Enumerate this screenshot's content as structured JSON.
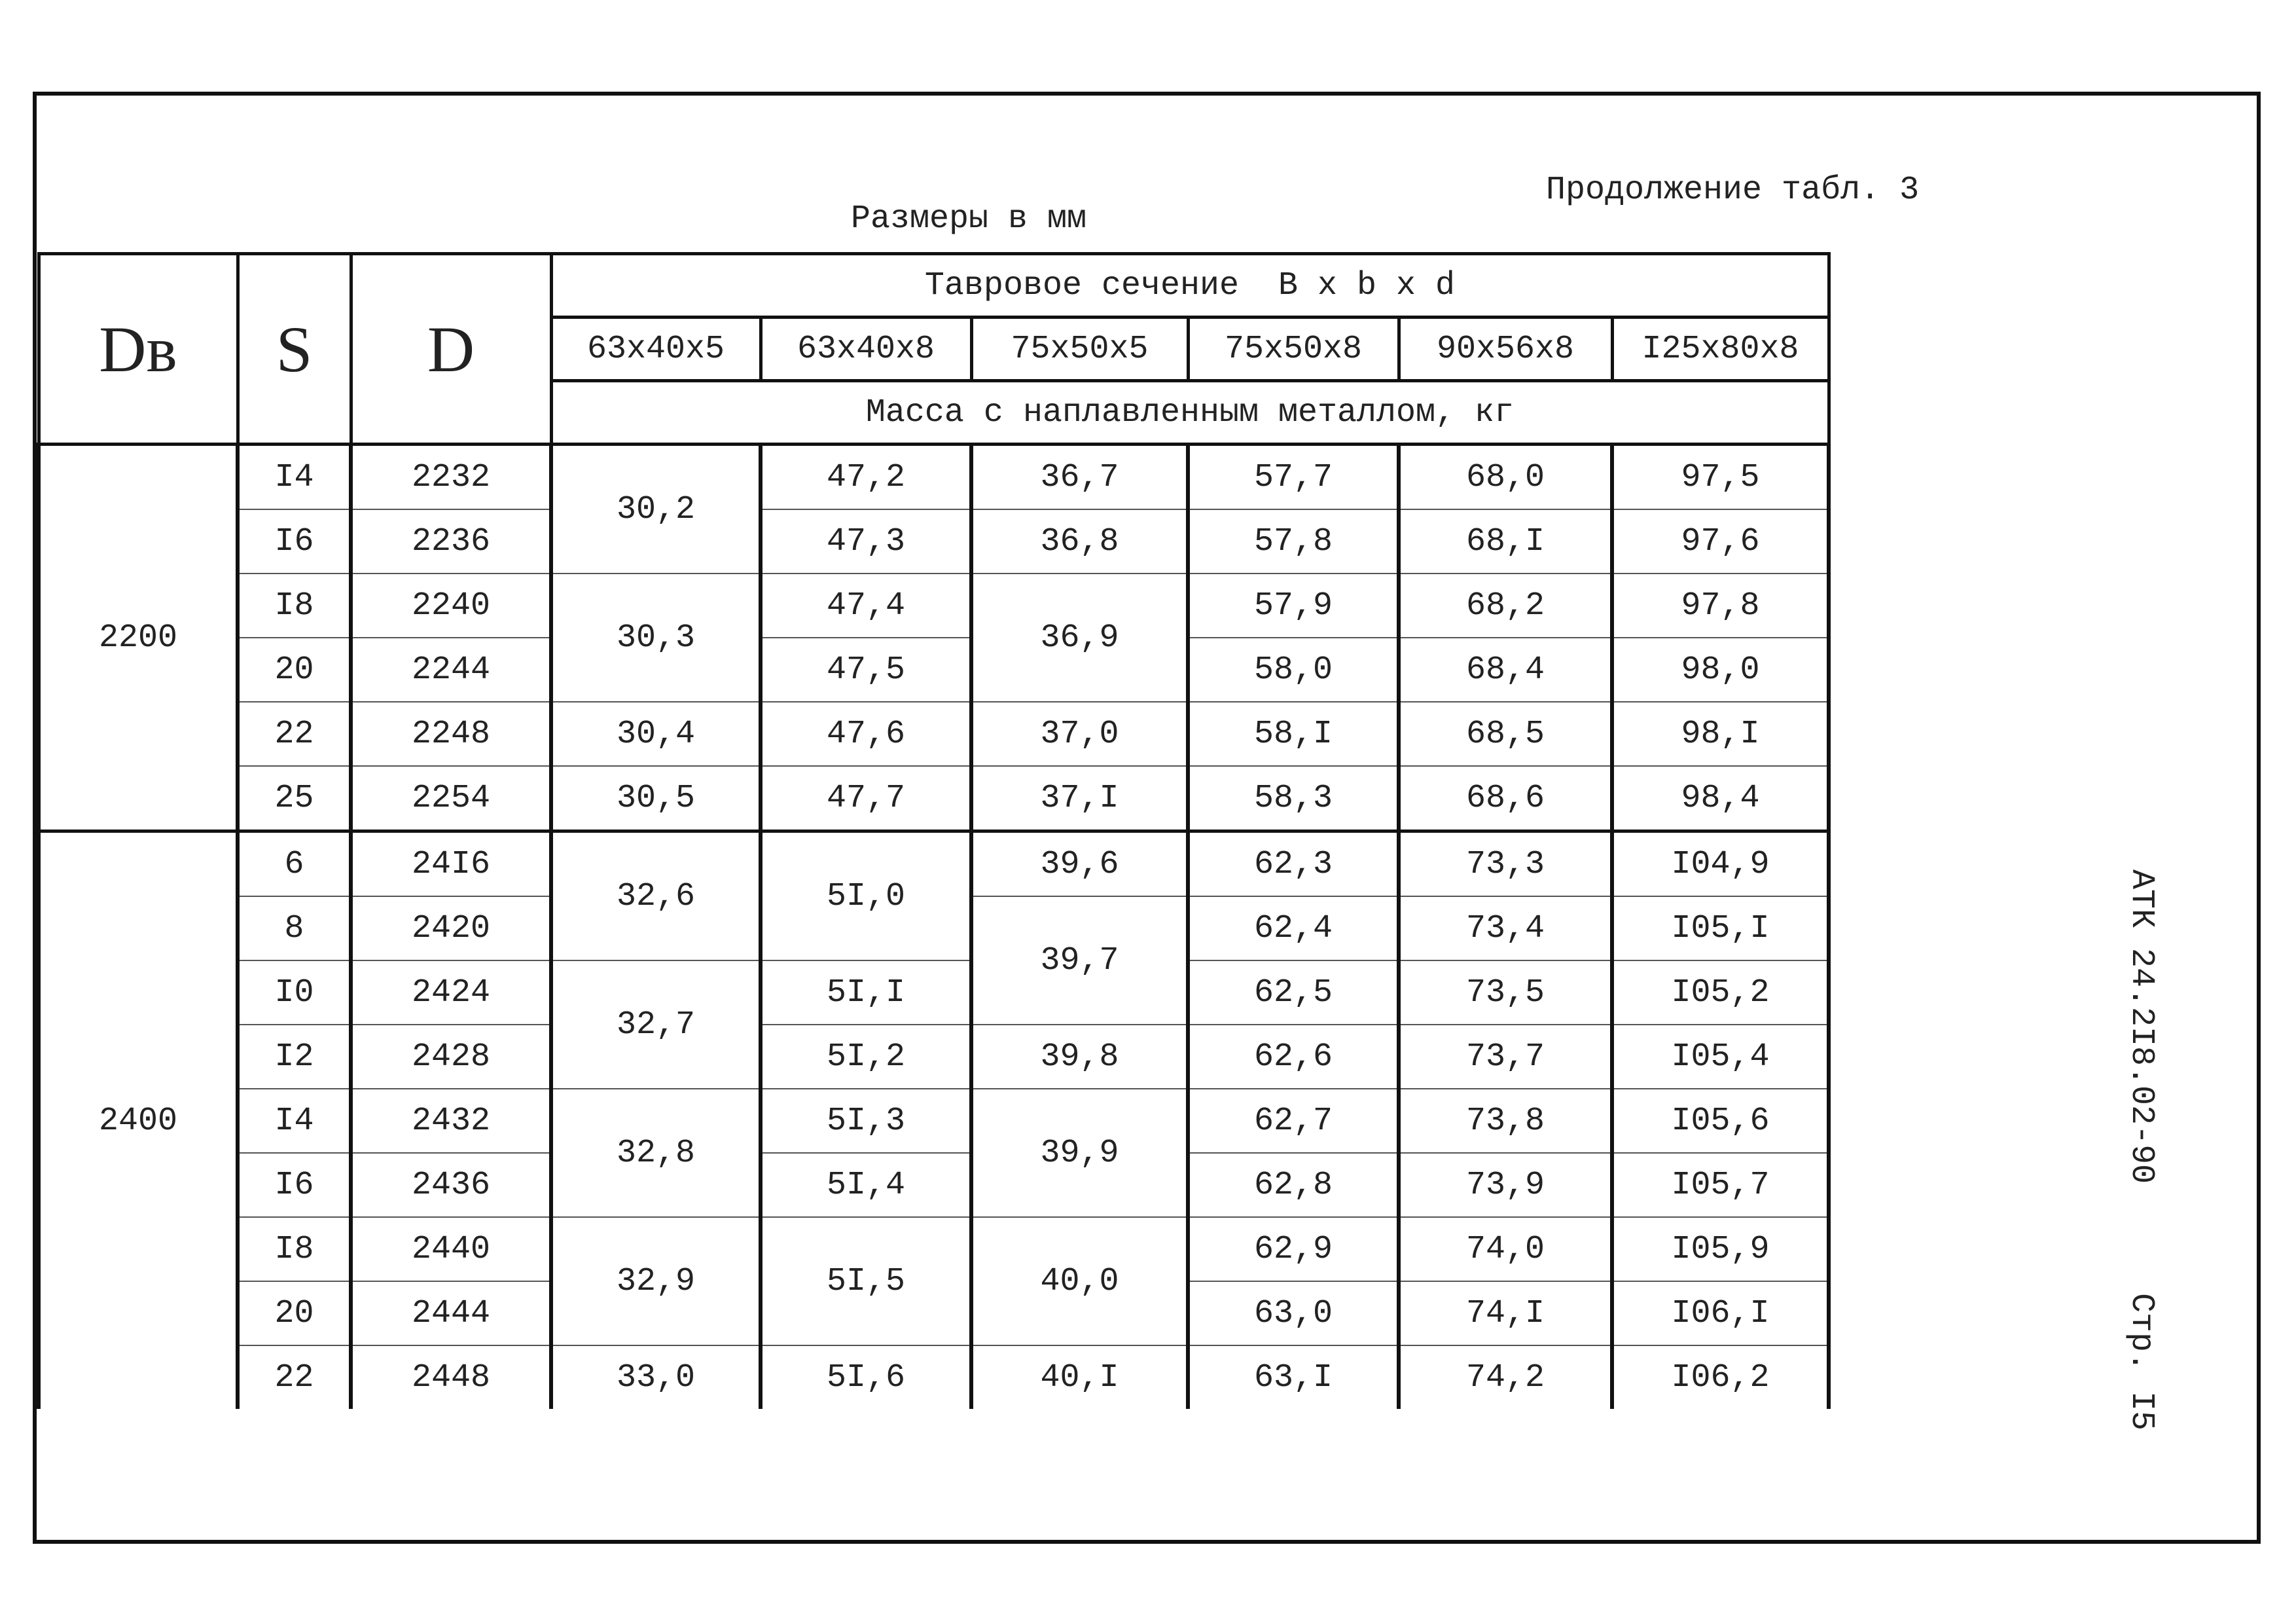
{
  "header": {
    "title": "Продолжение табл. 3",
    "units": "Размеры в мм"
  },
  "table": {
    "head": {
      "Db": "Dв",
      "S": "S",
      "D": "D",
      "section": "Тавровое сечение  В x b x d",
      "sizes": [
        "63x40x5",
        "63x40x8",
        "75x50x5",
        "75x50x8",
        "90x56x8",
        "I25x80x8"
      ],
      "mass": "Масса с наплавленным металлом, кг"
    },
    "rows": [
      [
        "2200",
        "I4",
        "2232",
        "30,2",
        "47,2",
        "36,7",
        "57,7",
        "68,0",
        "97,5"
      ],
      [
        "I6",
        "2236",
        "47,3",
        "36,8",
        "57,8",
        "68,I",
        "97,6"
      ],
      [
        "I8",
        "2240",
        "30,3",
        "47,4",
        "36,9",
        "57,9",
        "68,2",
        "97,8"
      ],
      [
        "20",
        "2244",
        "47,5",
        "58,0",
        "68,4",
        "98,0"
      ],
      [
        "22",
        "2248",
        "30,4",
        "47,6",
        "37,0",
        "58,I",
        "68,5",
        "98,I"
      ],
      [
        "25",
        "2254",
        "30,5",
        "47,7",
        "37,I",
        "58,3",
        "68,6",
        "98,4"
      ],
      [
        "2400",
        "6",
        "24I6",
        "32,6",
        "5I,0",
        "39,6",
        "62,3",
        "73,3",
        "I04,9"
      ],
      [
        "8",
        "2420",
        "39,7",
        "62,4",
        "73,4",
        "I05,I"
      ],
      [
        "I0",
        "2424",
        "32,7",
        "5I,I",
        "62,5",
        "73,5",
        "I05,2"
      ],
      [
        "I2",
        "2428",
        "5I,2",
        "39,8",
        "62,6",
        "73,7",
        "I05,4"
      ],
      [
        "I4",
        "2432",
        "32,8",
        "5I,3",
        "39,9",
        "62,7",
        "73,8",
        "I05,6"
      ],
      [
        "I6",
        "2436",
        "5I,4",
        "62,8",
        "73,9",
        "I05,7"
      ],
      [
        "I8",
        "2440",
        "32,9",
        "5I,5",
        "40,0",
        "62,9",
        "74,0",
        "I05,9"
      ],
      [
        "20",
        "2444",
        "63,0",
        "74,I",
        "I06,I"
      ],
      [
        "22",
        "2448",
        "33,0",
        "5I,6",
        "40,I",
        "63,I",
        "74,2",
        "I06,2"
      ]
    ]
  },
  "side": {
    "code": "АТК 24.2I8.02-90",
    "page": "Стр. I5"
  }
}
